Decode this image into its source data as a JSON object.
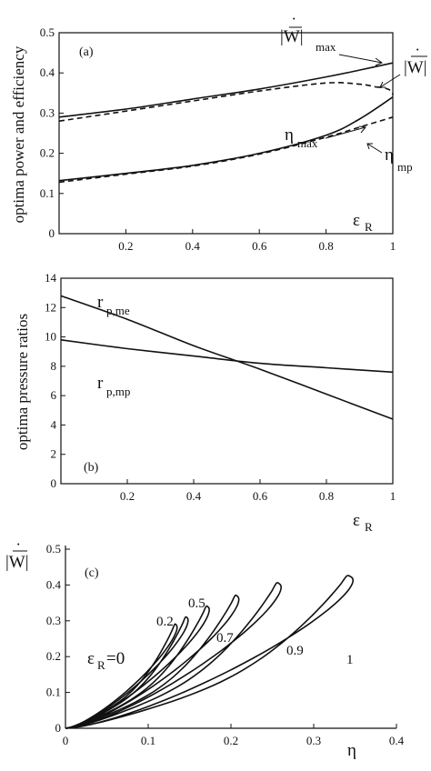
{
  "chart_data": [
    {
      "type": "line",
      "panel_label": "(a)",
      "xlabel": "ε",
      "xlabel_sub": "R",
      "ylabel": "optima power and efficiency",
      "xlim": [
        0,
        1
      ],
      "ylim": [
        0,
        0.5
      ],
      "xticks": [
        "0.2",
        "0.4",
        "0.6",
        "0.8",
        "1"
      ],
      "yticks": [
        "0",
        "0.1",
        "0.2",
        "0.3",
        "0.4",
        "0.5"
      ],
      "annotations": {
        "wmax_main": "|W|",
        "wmax_sub": "max",
        "wmp_main": "|W|",
        "eta_max_main": "η",
        "eta_max_sub": "max",
        "eta_mp_main": "η",
        "eta_mp_sub": "mp"
      },
      "series": [
        {
          "style": "solid",
          "x": [
            0,
            0.2,
            0.4,
            0.6,
            0.8,
            0.9,
            1.0
          ],
          "y": [
            0.29,
            0.31,
            0.335,
            0.36,
            0.39,
            0.407,
            0.425
          ]
        },
        {
          "style": "dashed",
          "x": [
            0,
            0.2,
            0.4,
            0.6,
            0.8,
            0.9,
            0.95
          ],
          "y": [
            0.28,
            0.305,
            0.33,
            0.355,
            0.375,
            0.372,
            0.365
          ]
        },
        {
          "style": "solid",
          "x": [
            0,
            0.2,
            0.4,
            0.6,
            0.8,
            0.9,
            1.0
          ],
          "y": [
            0.132,
            0.15,
            0.17,
            0.2,
            0.245,
            0.285,
            0.34
          ]
        },
        {
          "style": "dashed",
          "x": [
            0,
            0.2,
            0.4,
            0.6,
            0.8,
            0.9,
            1.0
          ],
          "y": [
            0.128,
            0.148,
            0.168,
            0.198,
            0.24,
            0.265,
            0.29
          ]
        }
      ]
    },
    {
      "type": "line",
      "panel_label": "(b)",
      "xlabel": "ε",
      "xlabel_sub": "R",
      "ylabel": "optima pressure ratios",
      "xlim": [
        0,
        1
      ],
      "ylim": [
        0,
        14
      ],
      "xticks": [
        "0.2",
        "0.4",
        "0.6",
        "0.8",
        "1"
      ],
      "yticks": [
        "0",
        "2",
        "4",
        "6",
        "8",
        "10",
        "12",
        "14"
      ],
      "series": [
        {
          "name": "r",
          "name_sub": "p,me",
          "style": "solid",
          "x": [
            0,
            0.2,
            0.4,
            0.6,
            0.8,
            1.0
          ],
          "y": [
            12.8,
            11.2,
            9.4,
            7.8,
            6.1,
            4.4
          ]
        },
        {
          "name": "r",
          "name_sub": "p,mp",
          "style": "solid",
          "x": [
            0,
            0.2,
            0.4,
            0.6,
            0.8,
            1.0
          ],
          "y": [
            9.8,
            9.2,
            8.7,
            8.2,
            7.9,
            7.6
          ]
        }
      ]
    },
    {
      "type": "line",
      "panel_label": "(c)",
      "xlabel": "η",
      "ylabel": "|W|",
      "xlim": [
        0,
        0.4
      ],
      "ylim": [
        0,
        0.5
      ],
      "xticks": [
        "0",
        "0.1",
        "0.2",
        "0.3",
        "0.4"
      ],
      "yticks": [
        "0",
        "0.1",
        "0.2",
        "0.3",
        "0.4",
        "0.5"
      ],
      "loops": [
        {
          "label": "ε",
          "label_sub": "R",
          "label_suffix": "=0",
          "eta_max": 0.132,
          "w_max": 0.29
        },
        {
          "label": "0.2",
          "eta_max": 0.145,
          "w_max": 0.31
        },
        {
          "label": "0.5",
          "eta_max": 0.17,
          "w_max": 0.34
        },
        {
          "label": "0.7",
          "eta_max": 0.205,
          "w_max": 0.37
        },
        {
          "label": "0.9",
          "eta_max": 0.255,
          "w_max": 0.405
        },
        {
          "label": "1",
          "eta_max": 0.34,
          "w_max": 0.425
        }
      ]
    }
  ]
}
